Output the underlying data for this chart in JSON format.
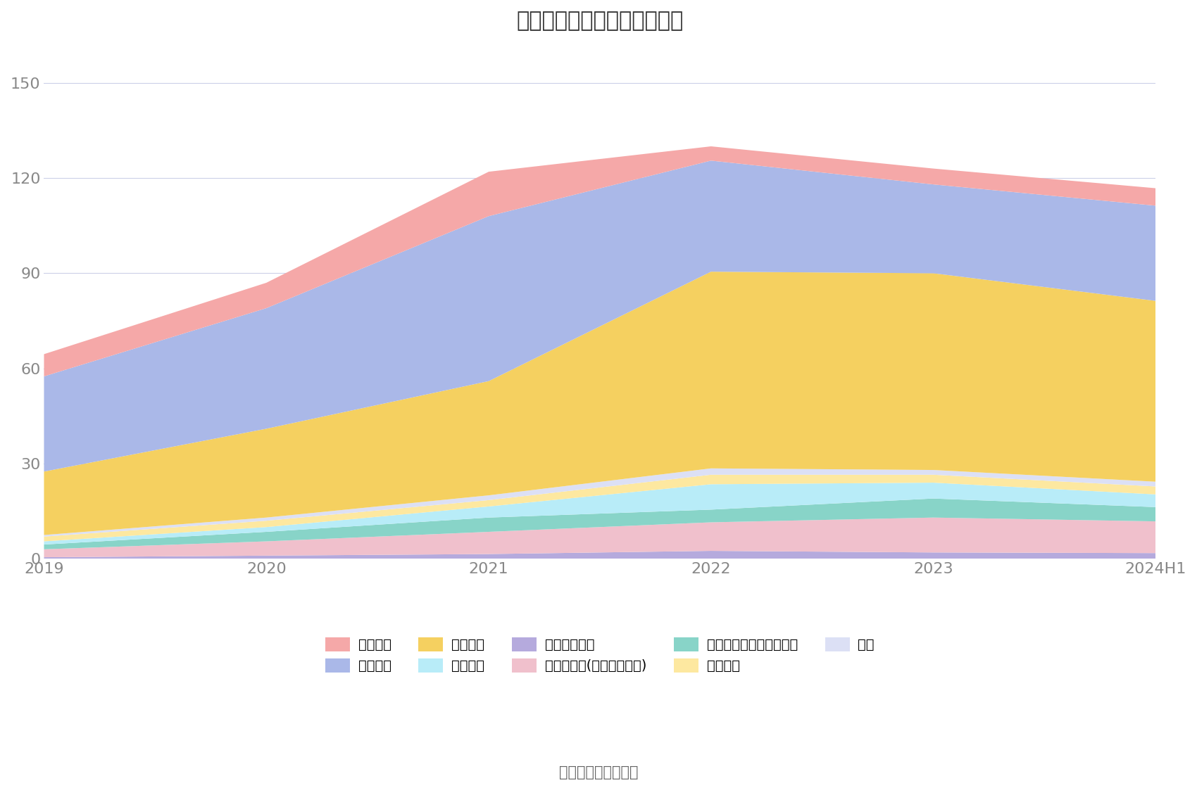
{
  "title": "历年主要负债堆积图（亿元）",
  "x_labels": [
    "2019",
    "2020",
    "2021",
    "2022",
    "2023",
    "2024H1"
  ],
  "series": [
    {
      "name": "应付职工薪酬",
      "color": "#b5aadd",
      "values": [
        0.5,
        1.0,
        1.5,
        2.5,
        2.0,
        1.8
      ]
    },
    {
      "name": "其他应付款(含利息和股利)",
      "color": "#f0c0cc",
      "values": [
        2.5,
        4.5,
        7.0,
        9.0,
        11.0,
        10.0
      ]
    },
    {
      "name": "一年内到期的非流动负债",
      "color": "#88d4c8",
      "values": [
        1.5,
        3.0,
        4.5,
        4.0,
        6.0,
        4.5
      ]
    },
    {
      "name": "合同负债",
      "color": "#b8ecf8",
      "values": [
        1.0,
        1.5,
        3.5,
        8.0,
        5.0,
        4.0
      ]
    },
    {
      "name": "长期借款",
      "color": "#fde8a0",
      "values": [
        1.5,
        2.0,
        2.0,
        3.0,
        2.5,
        2.5
      ]
    },
    {
      "name": "其它",
      "color": "#dce0f5",
      "values": [
        0.5,
        1.0,
        1.5,
        2.0,
        1.5,
        1.5
      ]
    },
    {
      "name": "应付账款",
      "color": "#f5d060",
      "values": [
        20.0,
        28.0,
        36.0,
        62.0,
        62.0,
        57.0
      ]
    },
    {
      "name": "应付票据",
      "color": "#aab8e8",
      "values": [
        30.0,
        38.0,
        52.0,
        35.0,
        28.0,
        30.0
      ]
    },
    {
      "name": "短期借款",
      "color": "#f5a8a8",
      "values": [
        7.0,
        8.0,
        14.0,
        4.5,
        5.0,
        5.5
      ]
    }
  ],
  "ylim": [
    0,
    160
  ],
  "yticks": [
    0,
    30,
    60,
    90,
    120,
    150
  ],
  "background_color": "#ffffff",
  "grid_color": "#ccd0e8",
  "title_fontsize": 22,
  "source_text": "数据来源：恒生聚源",
  "legend_order": [
    "短期借款",
    "应付票据",
    "应付账款",
    "合同负债",
    "应付职工薪酬",
    "其他应付款(含利息和股利)",
    "一年内到期的非流动负债",
    "长期借款",
    "其它"
  ]
}
